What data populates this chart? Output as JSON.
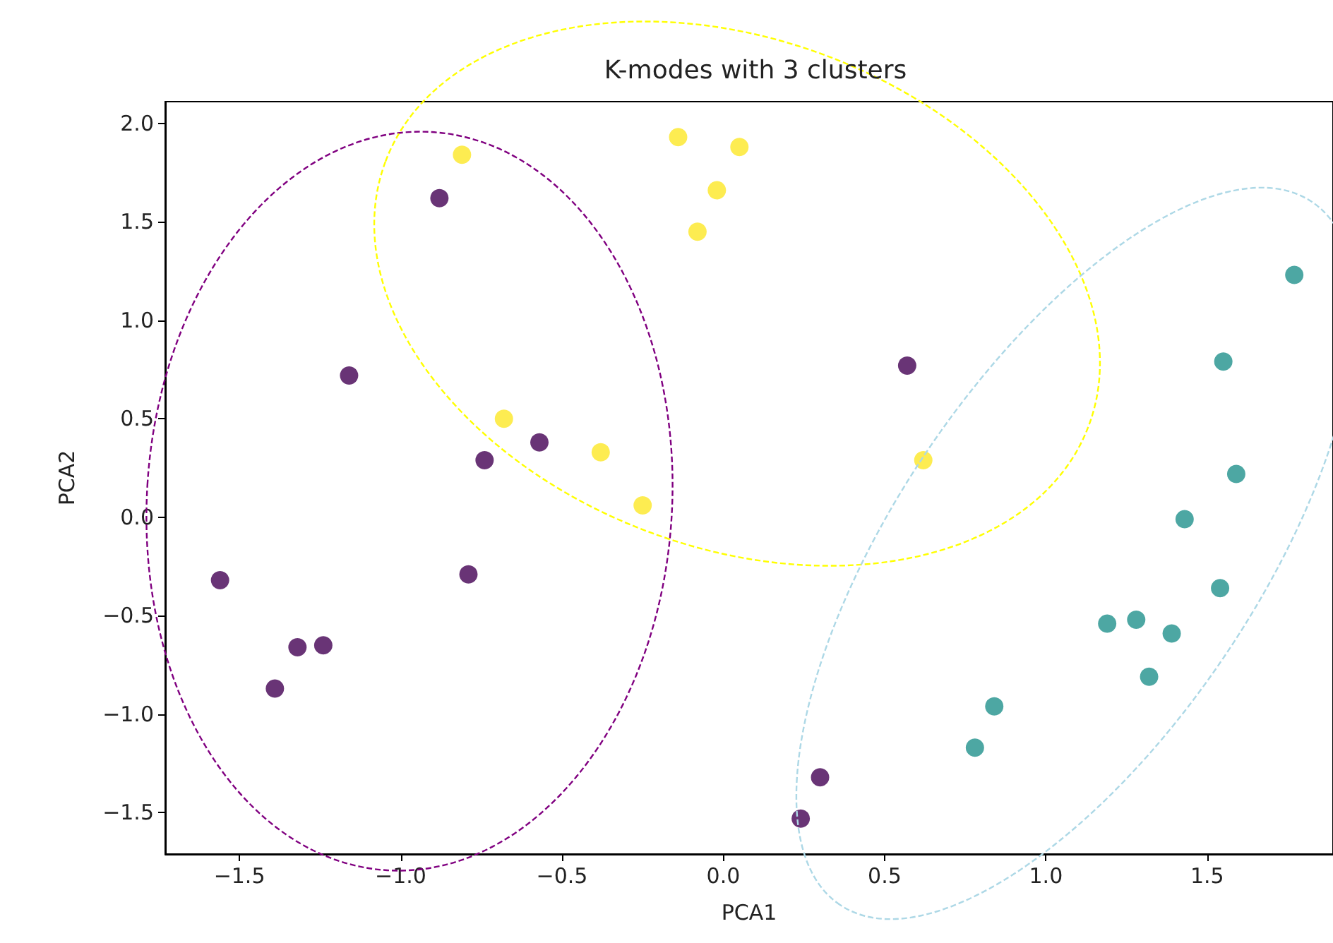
{
  "chart_data": {
    "type": "scatter",
    "title": "K-modes with 3 clusters",
    "xlabel": "PCA1",
    "ylabel": "PCA2",
    "xlim": [
      -1.73,
      1.89
    ],
    "ylim": [
      -1.71,
      2.11
    ],
    "xticks": [
      {
        "value": -1.5,
        "label": "−1.5"
      },
      {
        "value": -1.0,
        "label": "−1.0"
      },
      {
        "value": -0.5,
        "label": "−0.5"
      },
      {
        "value": 0,
        "label": "0.0"
      },
      {
        "value": 0.5,
        "label": "0.5"
      },
      {
        "value": 1.0,
        "label": "1.0"
      },
      {
        "value": 1.5,
        "label": "1.5"
      }
    ],
    "yticks": [
      {
        "value": -1.5,
        "label": "−1.5"
      },
      {
        "value": -1.0,
        "label": "−1.0"
      },
      {
        "value": -0.5,
        "label": "−0.5"
      },
      {
        "value": 0,
        "label": "0.0"
      },
      {
        "value": 0.5,
        "label": "0.5"
      },
      {
        "value": 1.0,
        "label": "1.0"
      },
      {
        "value": 1.5,
        "label": "1.5"
      },
      {
        "value": 2.0,
        "label": "2.0"
      }
    ],
    "grid": false,
    "marker": "circle",
    "series": [
      {
        "color": "#440154",
        "x": [
          -0.88,
          -1.16,
          -0.74,
          -0.57,
          -0.79,
          -1.56,
          -1.32,
          -1.24,
          -1.39,
          0.57,
          0.3,
          0.24
        ],
        "values": [
          1.62,
          0.72,
          0.29,
          0.38,
          -0.29,
          -0.32,
          -0.66,
          -0.65,
          -0.87,
          0.77,
          -1.32,
          -1.53
        ]
      },
      {
        "color": "#fde725",
        "x": [
          -0.81,
          -0.14,
          0.05,
          -0.02,
          -0.08,
          -0.68,
          -0.38,
          -0.25,
          0.62
        ],
        "values": [
          1.84,
          1.93,
          1.88,
          1.66,
          1.45,
          0.5,
          0.33,
          0.06,
          0.29
        ]
      },
      {
        "color": "#21918c",
        "x": [
          1.77,
          1.55,
          1.59,
          1.43,
          1.54,
          1.19,
          1.28,
          1.39,
          1.32,
          0.84,
          0.78
        ],
        "values": [
          1.23,
          0.79,
          0.22,
          -0.01,
          -0.36,
          -0.54,
          -0.52,
          -0.59,
          -0.81,
          -0.96,
          -1.17
        ]
      }
    ]
  }
}
